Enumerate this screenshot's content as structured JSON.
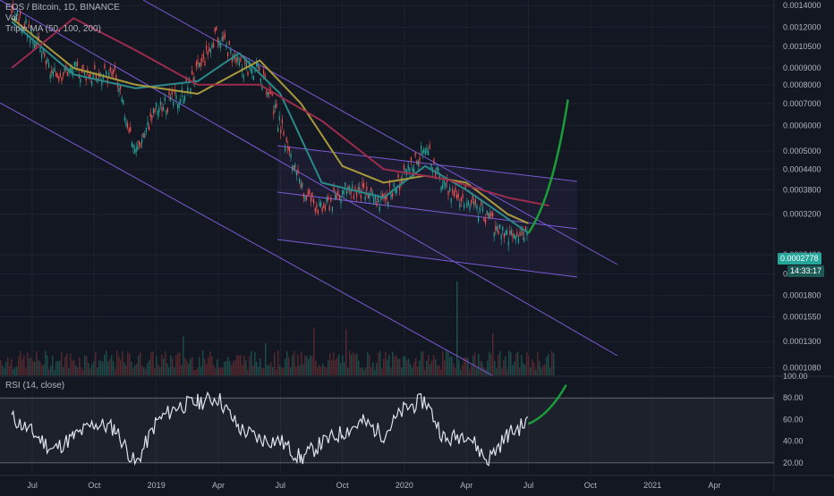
{
  "header": {
    "symbol_line": "EOS / Bitcoin, 1D, BINANCE",
    "vol_label": "Vol",
    "ma_label": "Triple MA (50, 100, 200)",
    "rsi_label": "RSI (14, close)"
  },
  "price_badge": {
    "value": "0.0002778",
    "countdown": "14:33:17",
    "color": "#26a69a"
  },
  "colors": {
    "background": "#131722",
    "candle_up": "#26a69a",
    "candle_down": "#ef5350",
    "channel": "#7b5bd6",
    "ma50": "#2a8a8a",
    "ma100": "#a89a3c",
    "ma200": "#9b2c4c",
    "projection": "#1b9e3a",
    "rsi_line": "#e0e3eb",
    "grid": "#1e2230"
  },
  "chart_data": [
    {
      "type": "line",
      "subtype": "candlestick",
      "scale": "log",
      "title": "EOS / Bitcoin, 1D, BINANCE",
      "ylim": [
        0.000105,
        0.00142
      ],
      "x_ticks": [
        "Jul",
        "Oct",
        "2019",
        "Apr",
        "Jul",
        "Oct",
        "2020",
        "Apr",
        "Jul",
        "Oct",
        "2021",
        "Apr"
      ],
      "y_ticks": [
        "0.0014000",
        "0.0012000",
        "0.0010500",
        "0.0009000",
        "0.0008000",
        "0.0007000",
        "0.0006000",
        "0.0005000",
        "0.0004400",
        "0.0003800",
        "0.0003200",
        "0.0002400",
        "0.0002100",
        "0.0001800",
        "0.0001550",
        "0.0001300",
        "0.0001080"
      ],
      "series": [
        {
          "name": "EOS/BTC",
          "x": [
            "2018-06",
            "2018-07",
            "2018-08",
            "2018-09",
            "2018-10",
            "2018-11",
            "2018-12",
            "2019-01",
            "2019-02",
            "2019-03",
            "2019-04",
            "2019-05",
            "2019-06",
            "2019-07",
            "2019-08",
            "2019-09",
            "2019-10",
            "2019-11",
            "2019-12",
            "2020-01",
            "2020-02",
            "2020-03",
            "2020-04",
            "2020-05",
            "2020-06",
            "2020-07"
          ],
          "values": [
            0.00135,
            0.00115,
            0.00085,
            0.0009,
            0.00085,
            0.00085,
            0.0005,
            0.00068,
            0.00072,
            0.00088,
            0.00115,
            0.00092,
            0.00088,
            0.0006,
            0.00038,
            0.00033,
            0.00038,
            0.00037,
            0.00035,
            0.00042,
            0.00052,
            0.00038,
            0.00036,
            0.00031,
            0.00027,
            0.00028
          ]
        },
        {
          "name": "MA 50",
          "x": [
            "2018-06",
            "2018-09",
            "2018-12",
            "2019-03",
            "2019-05",
            "2019-07",
            "2019-09",
            "2019-12",
            "2020-02",
            "2020-04",
            "2020-06",
            "2020-07"
          ],
          "values": [
            0.00125,
            0.00086,
            0.00078,
            0.00082,
            0.001,
            0.00075,
            0.0004,
            0.00036,
            0.00045,
            0.00038,
            0.00031,
            0.00028
          ]
        },
        {
          "name": "MA 100",
          "x": [
            "2018-06",
            "2018-09",
            "2018-12",
            "2019-03",
            "2019-06",
            "2019-08",
            "2019-10",
            "2019-12",
            "2020-02",
            "2020-04",
            "2020-06",
            "2020-07"
          ],
          "values": [
            0.00128,
            0.0009,
            0.0008,
            0.00075,
            0.00095,
            0.0007,
            0.00045,
            0.0004,
            0.00042,
            0.0004,
            0.00032,
            0.0003
          ]
        },
        {
          "name": "MA 200",
          "x": [
            "2018-06",
            "2018-09",
            "2018-12",
            "2019-03",
            "2019-06",
            "2019-09",
            "2019-12",
            "2020-03",
            "2020-06",
            "2020-08"
          ],
          "values": [
            0.0009,
            0.00128,
            0.00102,
            0.0008,
            0.0008,
            0.00062,
            0.00044,
            0.00041,
            0.00036,
            0.00034
          ]
        },
        {
          "name": "Projection",
          "x": [
            "2020-07",
            "2020-08",
            "2020-09"
          ],
          "values": [
            0.00028,
            0.00036,
            0.00072
          ]
        }
      ]
    },
    {
      "type": "line",
      "title": "RSI (14, close)",
      "ylim": [
        10,
        100
      ],
      "y_ticks": [
        "100.00",
        "80.00",
        "60.00",
        "40.00",
        "20.00"
      ],
      "bands": [
        80,
        20
      ],
      "series": [
        {
          "name": "RSI",
          "x": [
            "2018-06",
            "2018-07",
            "2018-08",
            "2018-09",
            "2018-10",
            "2018-11",
            "2018-12",
            "2019-01",
            "2019-02",
            "2019-03",
            "2019-04",
            "2019-05",
            "2019-06",
            "2019-07",
            "2019-08",
            "2019-09",
            "2019-10",
            "2019-11",
            "2019-12",
            "2020-01",
            "2020-02",
            "2020-03",
            "2020-04",
            "2020-05",
            "2020-06",
            "2020-07"
          ],
          "values": [
            62,
            48,
            32,
            44,
            56,
            52,
            18,
            58,
            72,
            76,
            80,
            52,
            42,
            40,
            24,
            38,
            48,
            58,
            46,
            70,
            78,
            40,
            48,
            22,
            46,
            58
          ]
        },
        {
          "name": "Projection",
          "x": [
            "2020-07",
            "2020-08",
            "2020-09"
          ],
          "values": [
            56,
            64,
            92
          ]
        }
      ]
    }
  ]
}
